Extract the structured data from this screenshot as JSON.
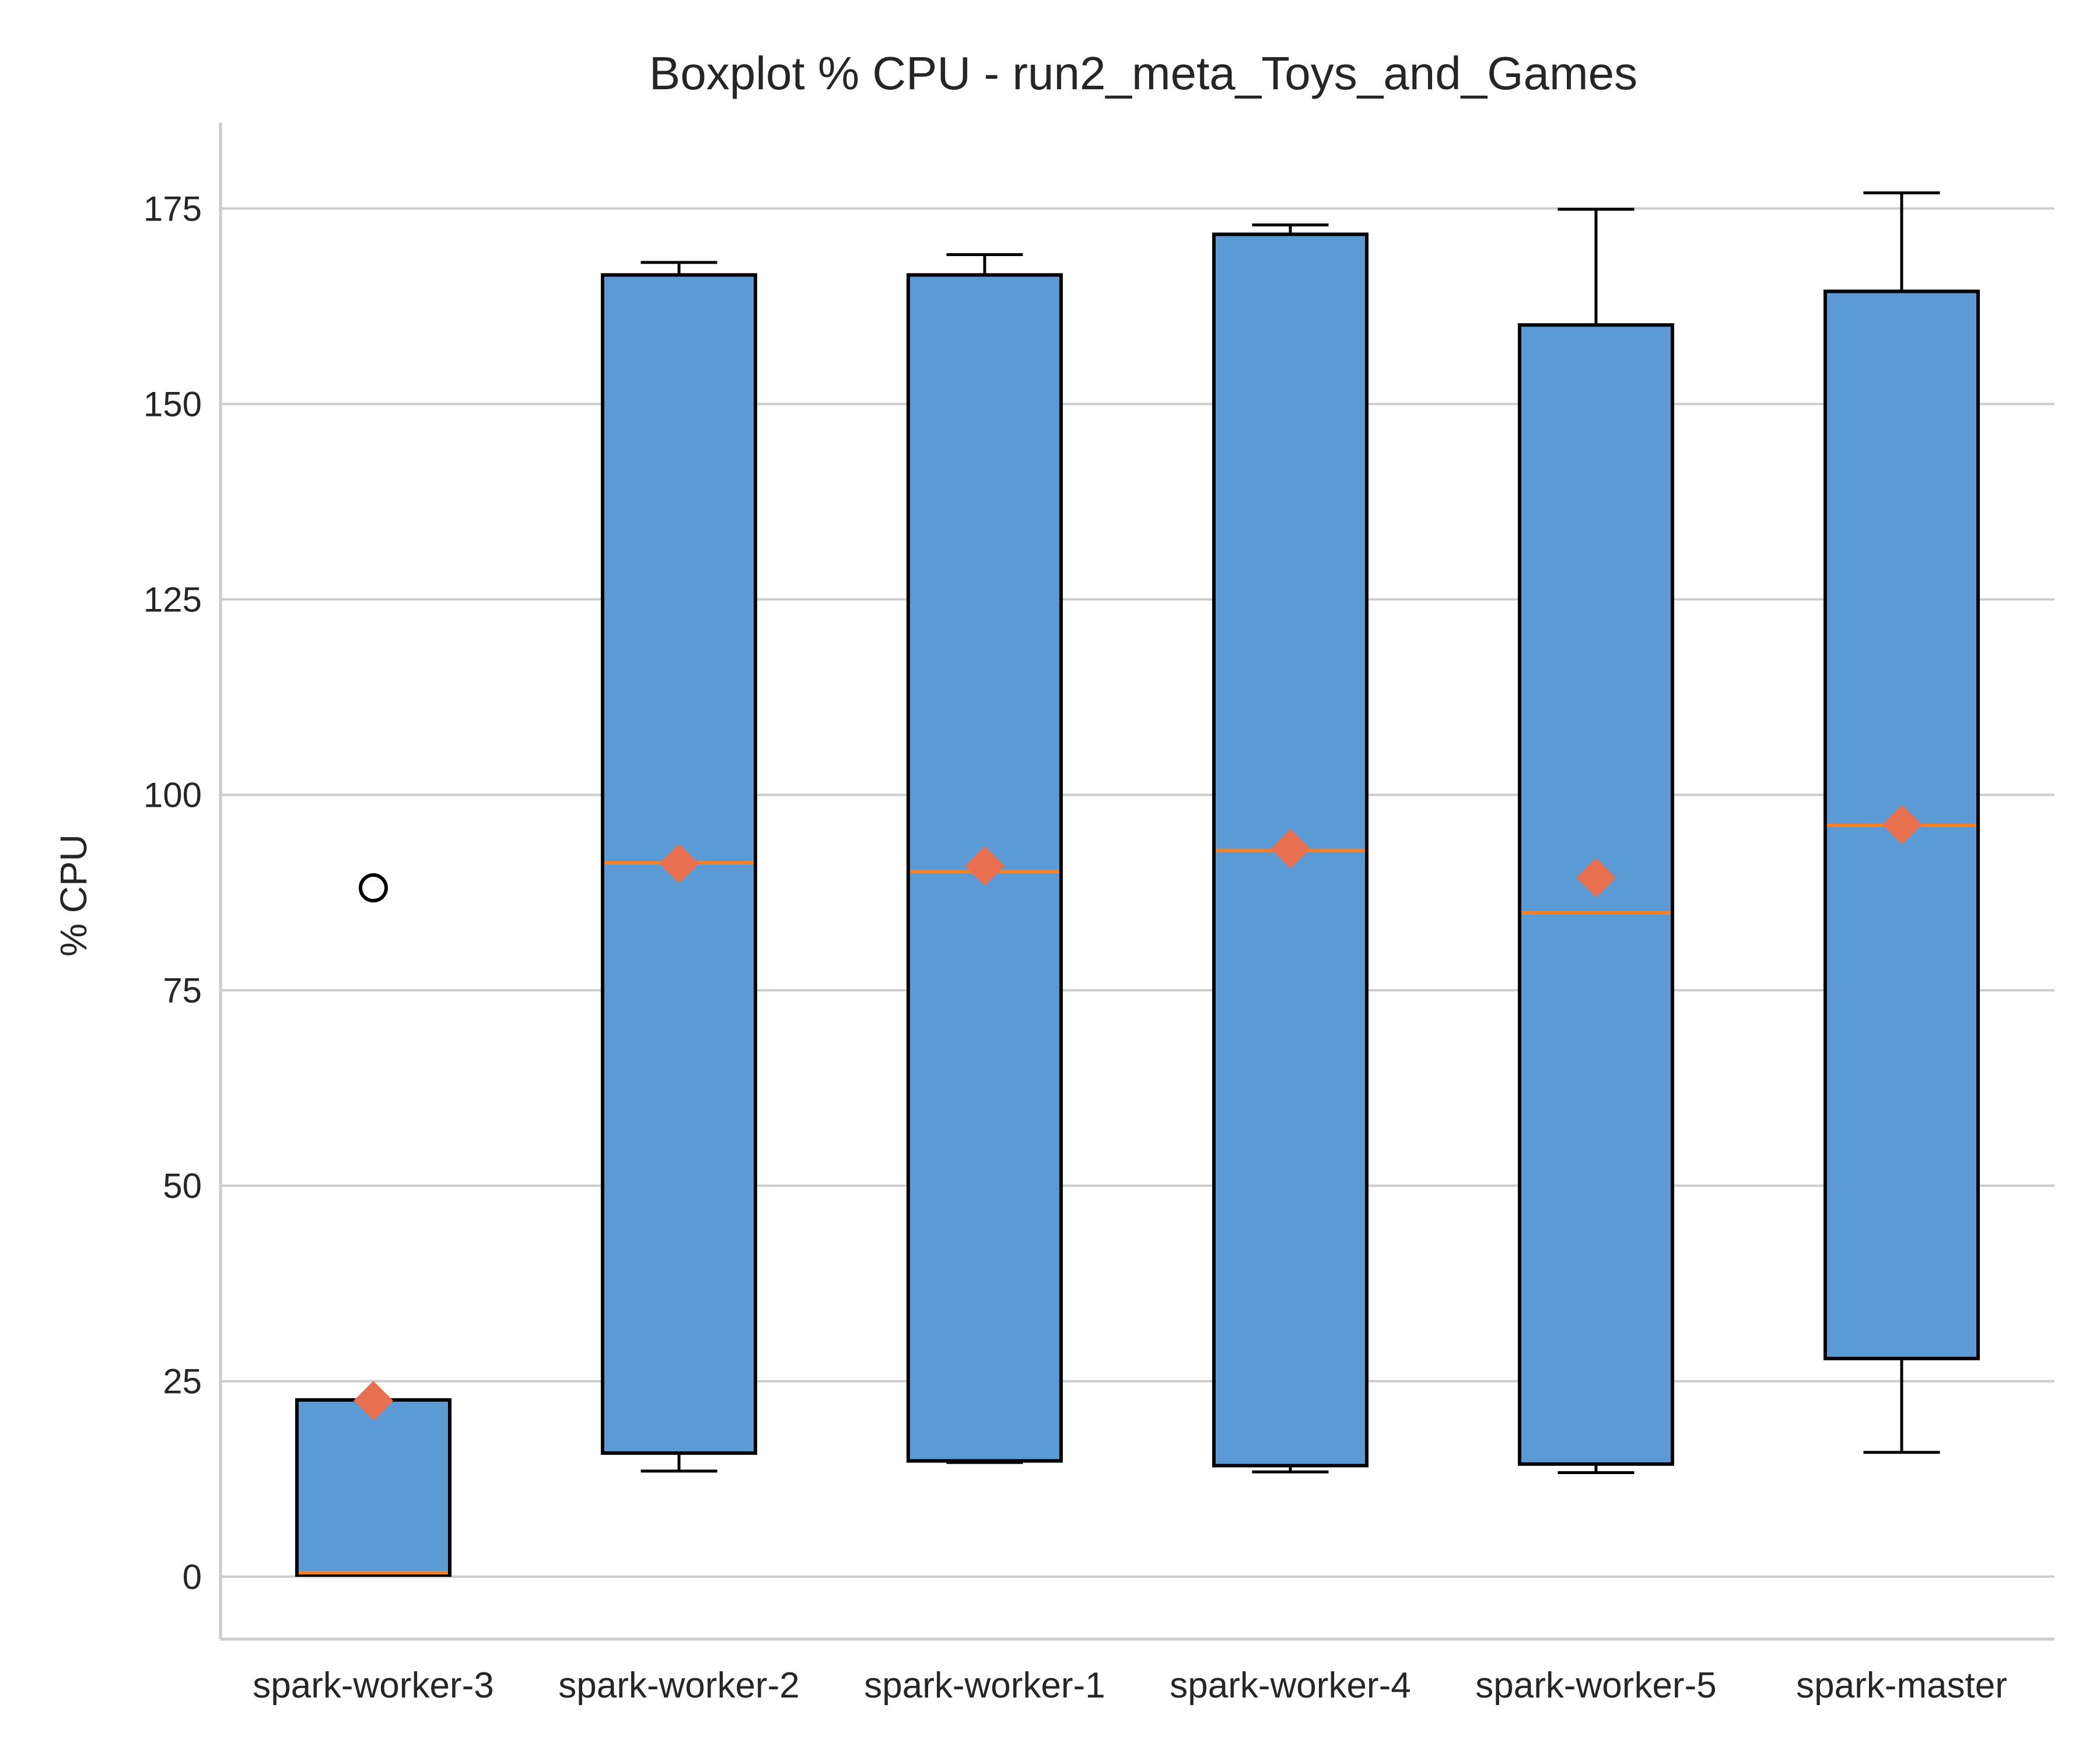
{
  "chart_data": {
    "type": "boxplot",
    "title": "Boxplot % CPU - run2_meta_Toys_and_Games",
    "xlabel": "",
    "ylabel": "% CPU",
    "ylim": [
      -8,
      186
    ],
    "yticks": [
      0,
      25,
      50,
      75,
      100,
      125,
      150,
      175
    ],
    "grid": "horizontal",
    "colors": {
      "box_fill": "#5b9bd5",
      "box_edge": "#000000",
      "median": "#f58025",
      "mean": "#e8704f",
      "grid": "#cccccc",
      "spine": "#cccccc"
    },
    "categories": [
      "spark-worker-3",
      "spark-worker-2",
      "spark-worker-1",
      "spark-worker-4",
      "spark-worker-5",
      "spark-master"
    ],
    "boxes": [
      {
        "label": "spark-worker-3",
        "whisker_low": 0.2,
        "q1": 0.2,
        "median": 0.5,
        "q3": 22.6,
        "whisker_high": 22.6,
        "mean": 22.5,
        "outliers": [
          88.1
        ]
      },
      {
        "label": "spark-worker-2",
        "whisker_low": 13.5,
        "q1": 15.8,
        "median": 91.3,
        "q3": 166.5,
        "whisker_high": 168.1,
        "mean": 91.2,
        "outliers": []
      },
      {
        "label": "spark-worker-1",
        "whisker_low": 14.6,
        "q1": 14.8,
        "median": 90.2,
        "q3": 166.5,
        "whisker_high": 169.1,
        "mean": 90.9,
        "outliers": []
      },
      {
        "label": "spark-worker-4",
        "whisker_low": 13.4,
        "q1": 14.2,
        "median": 92.9,
        "q3": 171.7,
        "whisker_high": 172.9,
        "mean": 93.1,
        "outliers": []
      },
      {
        "label": "spark-worker-5",
        "whisker_low": 13.3,
        "q1": 14.4,
        "median": 84.9,
        "q3": 160.1,
        "whisker_high": 174.9,
        "mean": 89.4,
        "outliers": []
      },
      {
        "label": "spark-master",
        "whisker_low": 15.9,
        "q1": 27.9,
        "median": 96.1,
        "q3": 164.4,
        "whisker_high": 177.0,
        "mean": 96.2,
        "outliers": []
      }
    ]
  }
}
